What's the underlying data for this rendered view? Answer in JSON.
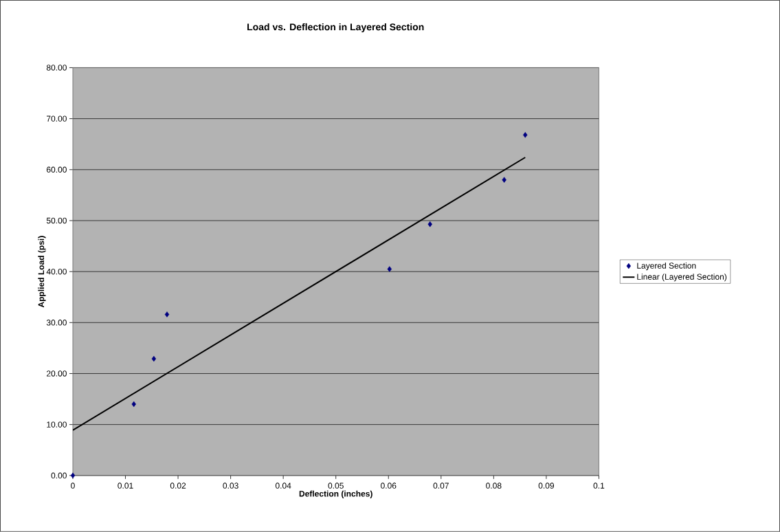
{
  "chart_data": {
    "type": "scatter",
    "title": "Load vs. Deflection in Layered Section",
    "xlabel": "Deflection (inches)",
    "ylabel": "Applied Load (psi)",
    "xlim": [
      0,
      0.1
    ],
    "ylim": [
      0,
      80
    ],
    "xticks": [
      0,
      0.01,
      0.02,
      0.03,
      0.04,
      0.05,
      0.06,
      0.07,
      0.08,
      0.09,
      0.1
    ],
    "yticks": [
      {
        "value": 0,
        "label": "0.00"
      },
      {
        "value": 10,
        "label": "10.00"
      },
      {
        "value": 20,
        "label": "20.00"
      },
      {
        "value": 30,
        "label": "30.00"
      },
      {
        "value": 40,
        "label": "40.00"
      },
      {
        "value": 50,
        "label": "50.00"
      },
      {
        "value": 60,
        "label": "60.00"
      },
      {
        "value": 70,
        "label": "70.00"
      },
      {
        "value": 80,
        "label": "80.00"
      }
    ],
    "grid": "y",
    "legend": "right",
    "series": [
      {
        "name": "Layered Section",
        "type": "scatter",
        "color": "#000080",
        "marker": "diamond",
        "x": [
          0,
          0.0116,
          0.0154,
          0.0179,
          0.0602,
          0.0679,
          0.082,
          0.086
        ],
        "values": [
          0,
          14.0,
          22.9,
          31.6,
          40.5,
          49.3,
          58.0,
          66.8
        ]
      },
      {
        "name": "Linear (Layered Section)",
        "type": "line",
        "color": "#000000",
        "marker": "none",
        "line_style": "solid",
        "x": [
          0,
          0.086
        ],
        "values": [
          8.9,
          62.4
        ]
      }
    ]
  }
}
